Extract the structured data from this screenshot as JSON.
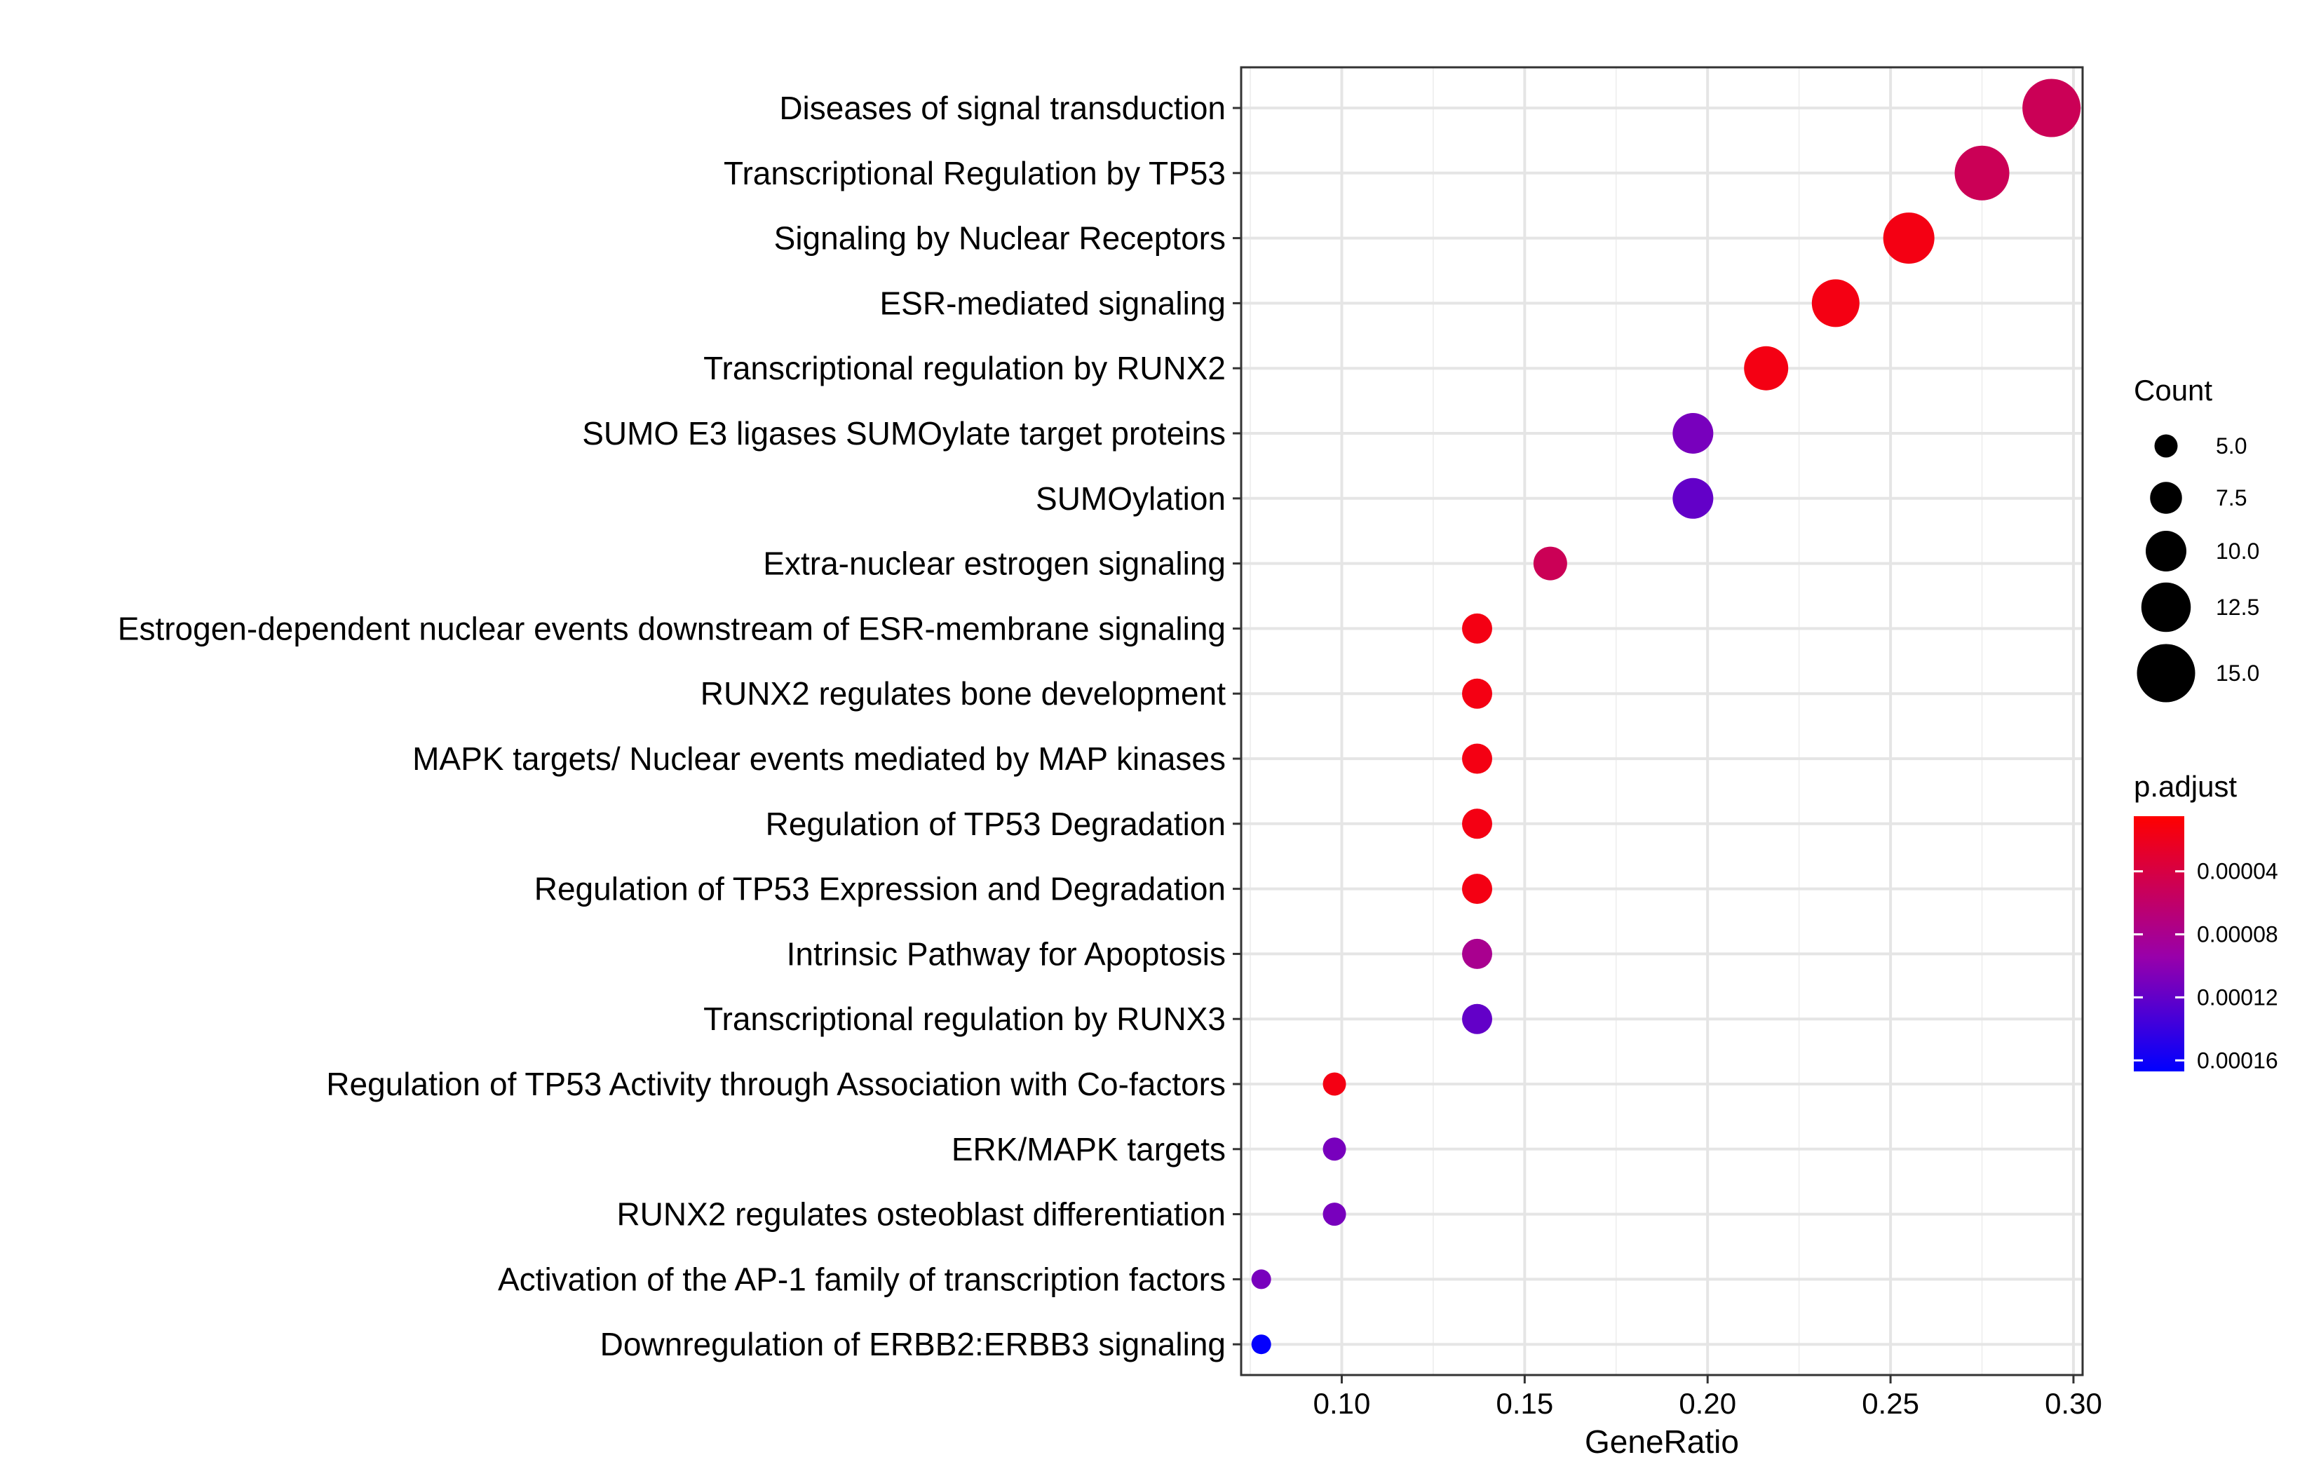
{
  "chart_data": {
    "type": "scatter",
    "title": "",
    "xlabel": "GeneRatio",
    "ylabel": "",
    "xlim": [
      0.0725,
      0.3025
    ],
    "x_ticks": [
      0.1,
      0.15,
      0.2,
      0.25,
      0.3
    ],
    "x_tick_labels": [
      "0.10",
      "0.15",
      "0.20",
      "0.25",
      "0.30"
    ],
    "grid": true,
    "categories": [
      "Diseases of signal transduction",
      "Transcriptional Regulation by TP53",
      "Signaling by Nuclear Receptors",
      "ESR-mediated signaling",
      "Transcriptional regulation by RUNX2",
      "SUMO E3 ligases SUMOylate target proteins",
      "SUMOylation",
      "Extra-nuclear estrogen signaling",
      "Estrogen-dependent nuclear events downstream of ESR-membrane signaling",
      "RUNX2 regulates bone development",
      "MAPK targets/ Nuclear events mediated by MAP kinases",
      "Regulation of TP53 Degradation",
      "Regulation of TP53 Expression and Degradation",
      "Intrinsic Pathway for Apoptosis",
      "Transcriptional regulation by RUNX3",
      "Regulation of TP53 Activity through Association with Co-factors",
      "ERK/MAPK targets",
      "RUNX2 regulates osteoblast differentiation",
      "Activation of the AP-1 family of transcription factors",
      "Downregulation of ERBB2:ERBB3 signaling"
    ],
    "gene_ratio": [
      0.294,
      0.275,
      0.255,
      0.235,
      0.216,
      0.196,
      0.196,
      0.157,
      0.137,
      0.137,
      0.137,
      0.137,
      0.137,
      0.137,
      0.137,
      0.098,
      0.098,
      0.098,
      0.078,
      0.078
    ],
    "count": [
      15,
      14,
      13,
      12,
      11,
      10,
      10,
      8,
      7,
      7,
      7,
      7,
      7,
      7,
      7,
      5,
      5,
      5,
      4,
      4
    ],
    "p_adjust": [
      5e-05,
      5e-05,
      1.5e-05,
      1.5e-05,
      1.5e-05,
      0.00011,
      0.00012,
      5e-05,
      1.5e-05,
      1.5e-05,
      1.5e-05,
      1.5e-05,
      1.5e-05,
      8e-05,
      0.00012,
      1.5e-05,
      0.00011,
      0.00011,
      0.00011,
      0.000165
    ],
    "size_legend": {
      "title": "Count",
      "values": [
        5.0,
        7.5,
        10.0,
        12.5,
        15.0
      ],
      "labels": [
        "5.0",
        "7.5",
        "10.0",
        "12.5",
        "15.0"
      ]
    },
    "color_legend": {
      "title": "p.adjust",
      "range": [
        5e-06,
        0.000167
      ],
      "ticks": [
        4e-05,
        8e-05,
        0.00012,
        0.00016
      ],
      "labels": [
        "0.00004",
        "0.00008",
        "0.00012",
        "0.00016"
      ],
      "low_color": "#ff0000",
      "mid_color": "#9900aa",
      "high_color": "#0000ff"
    }
  }
}
